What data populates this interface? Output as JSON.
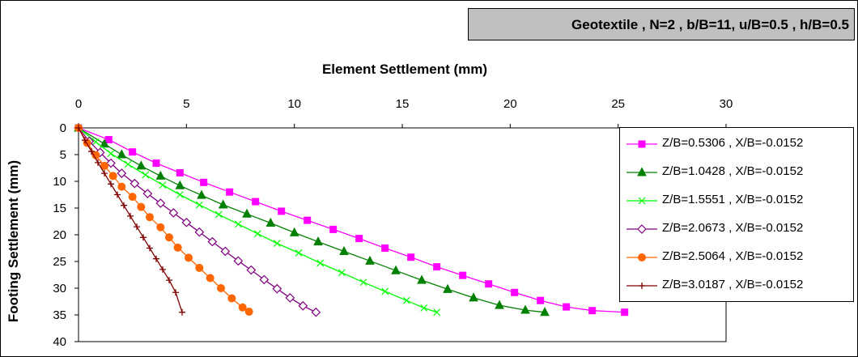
{
  "chart_data": {
    "type": "line",
    "title": "Geotextile , N=2 , b/B=11, u/B=0.5 , h/B=0.5",
    "xlabel": "Element Settlement (mm)",
    "ylabel": "Footing Settlement (mm)",
    "xlim": [
      0,
      30
    ],
    "ylim": [
      0,
      40
    ],
    "y_inverted": true,
    "x_axis_position": "top",
    "xticks": [
      "0",
      "5",
      "10",
      "15",
      "20",
      "25",
      "30"
    ],
    "yticks": [
      "0",
      "5",
      "10",
      "15",
      "20",
      "25",
      "30",
      "35",
      "40"
    ],
    "legend_position": "right",
    "series": [
      {
        "name": "Z/B=0.5306 , X/B=-0.0152",
        "color": "#ff00ff",
        "marker": "square",
        "x": [
          0,
          1.4,
          2.5,
          3.6,
          4.7,
          5.8,
          7.0,
          8.2,
          9.4,
          10.6,
          11.8,
          13.0,
          14.2,
          15.4,
          16.6,
          17.8,
          19.0,
          20.2,
          21.4,
          22.6,
          23.8,
          25.3
        ],
        "y": [
          0,
          2.2,
          4.5,
          6.6,
          8.4,
          10.2,
          12.0,
          13.8,
          15.6,
          17.3,
          19.0,
          20.7,
          22.5,
          24.2,
          26.0,
          27.6,
          29.2,
          30.8,
          32.3,
          33.5,
          34.2,
          34.5
        ]
      },
      {
        "name": "Z/B=1.0428 , X/B=-0.0152",
        "color": "#008000",
        "marker": "triangle",
        "x": [
          0,
          1.2,
          2.0,
          2.9,
          3.8,
          4.7,
          5.7,
          6.7,
          7.8,
          8.9,
          10.0,
          11.1,
          12.3,
          13.5,
          14.7,
          15.9,
          17.1,
          18.3,
          19.5,
          20.7,
          21.6
        ],
        "y": [
          0,
          3.0,
          5.0,
          7.1,
          9.0,
          10.8,
          12.6,
          14.4,
          16.1,
          17.8,
          19.6,
          21.3,
          23.1,
          24.9,
          26.7,
          28.5,
          30.2,
          31.8,
          33.2,
          34.1,
          34.5
        ]
      },
      {
        "name": "Z/B=1.5551 , X/B=-0.0152",
        "color": "#00ff00",
        "marker": "x",
        "x": [
          0,
          0.8,
          1.5,
          2.3,
          3.1,
          3.9,
          4.7,
          5.6,
          6.5,
          7.4,
          8.3,
          9.2,
          10.2,
          11.2,
          12.2,
          13.2,
          14.2,
          15.2,
          16.0,
          16.6
        ],
        "y": [
          0,
          2.6,
          4.8,
          6.8,
          8.8,
          10.7,
          12.5,
          14.4,
          16.2,
          18.0,
          19.8,
          21.6,
          23.4,
          25.3,
          27.1,
          28.9,
          30.6,
          32.3,
          33.7,
          34.5
        ]
      },
      {
        "name": "Z/B=2.0673 , X/B=-0.0152",
        "color": "#800080",
        "marker": "diamond-open",
        "x": [
          0,
          0.5,
          1.0,
          1.5,
          2.0,
          2.6,
          3.2,
          3.8,
          4.4,
          5.0,
          5.6,
          6.2,
          6.8,
          7.4,
          8.0,
          8.6,
          9.2,
          9.8,
          10.4,
          11.0
        ],
        "y": [
          0,
          2.5,
          4.6,
          6.6,
          8.5,
          10.4,
          12.3,
          14.1,
          15.9,
          17.7,
          19.5,
          21.3,
          23.1,
          24.9,
          26.6,
          28.4,
          30.1,
          31.8,
          33.3,
          34.5
        ]
      },
      {
        "name": "Z/B=2.5064 , X/B=-0.0152",
        "color": "#ff6600",
        "marker": "circle",
        "x": [
          0,
          0.4,
          0.8,
          1.2,
          1.6,
          2.0,
          2.5,
          2.9,
          3.3,
          3.8,
          4.2,
          4.6,
          5.1,
          5.6,
          6.1,
          6.6,
          7.1,
          7.6,
          7.9
        ],
        "y": [
          0,
          2.8,
          5.1,
          7.1,
          9.0,
          11.0,
          12.9,
          14.8,
          16.7,
          18.6,
          20.5,
          22.4,
          24.3,
          26.2,
          28.1,
          30.0,
          31.9,
          33.6,
          34.4
        ]
      },
      {
        "name": "Z/B=3.0187 , X/B=-0.0152",
        "color": "#800000",
        "marker": "plus",
        "x": [
          0,
          0.3,
          0.6,
          0.9,
          1.2,
          1.5,
          1.8,
          2.1,
          2.4,
          2.7,
          3.0,
          3.3,
          3.6,
          3.9,
          4.2,
          4.5,
          4.8
        ],
        "y": [
          0,
          2.3,
          4.4,
          6.5,
          8.5,
          10.5,
          12.5,
          14.5,
          16.5,
          18.5,
          20.5,
          22.5,
          24.5,
          26.5,
          28.5,
          30.8,
          34.5
        ]
      }
    ]
  }
}
